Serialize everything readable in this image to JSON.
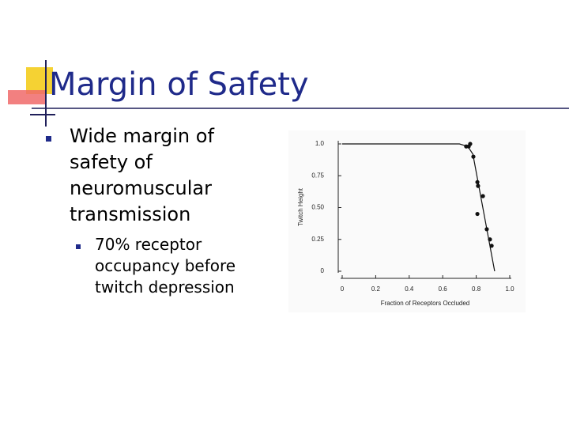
{
  "slide": {
    "title": "Margin of Safety",
    "bullets": [
      {
        "text": "Wide margin of safety of neuromuscular transmission",
        "sub_bullets": [
          "70% receptor occupancy before twitch depression"
        ]
      }
    ]
  },
  "chart_data": {
    "type": "scatter",
    "xlabel": "Fraction of Receptors Occluded",
    "ylabel": "Twitch Height",
    "xlim": [
      0,
      1
    ],
    "ylim": [
      0,
      1
    ],
    "xticks": [
      0,
      0.2,
      0.4,
      0.6,
      0.8,
      {
        "value": 1,
        "label": "1.0"
      }
    ],
    "yticks": [
      0,
      0.25,
      {
        "value": 0.5,
        "label": "0.50"
      },
      0.75,
      {
        "value": 1,
        "label": "1.0"
      }
    ],
    "series": [
      {
        "kind": "points",
        "color": "#111111",
        "x": [
          0.74,
          0.755,
          0.764,
          0.783,
          0.807,
          0.811,
          0.84,
          0.807,
          0.863,
          0.882,
          0.892
        ],
        "values": [
          0.98,
          0.98,
          1.0,
          0.9,
          0.7,
          0.67,
          0.59,
          0.45,
          0.33,
          0.25,
          0.2
        ]
      },
      {
        "kind": "line",
        "color": "#111111",
        "x": [
          0,
          0.7,
          0.75,
          0.78,
          0.91
        ],
        "values": [
          1,
          1,
          0.98,
          0.92,
          0
        ]
      }
    ]
  }
}
